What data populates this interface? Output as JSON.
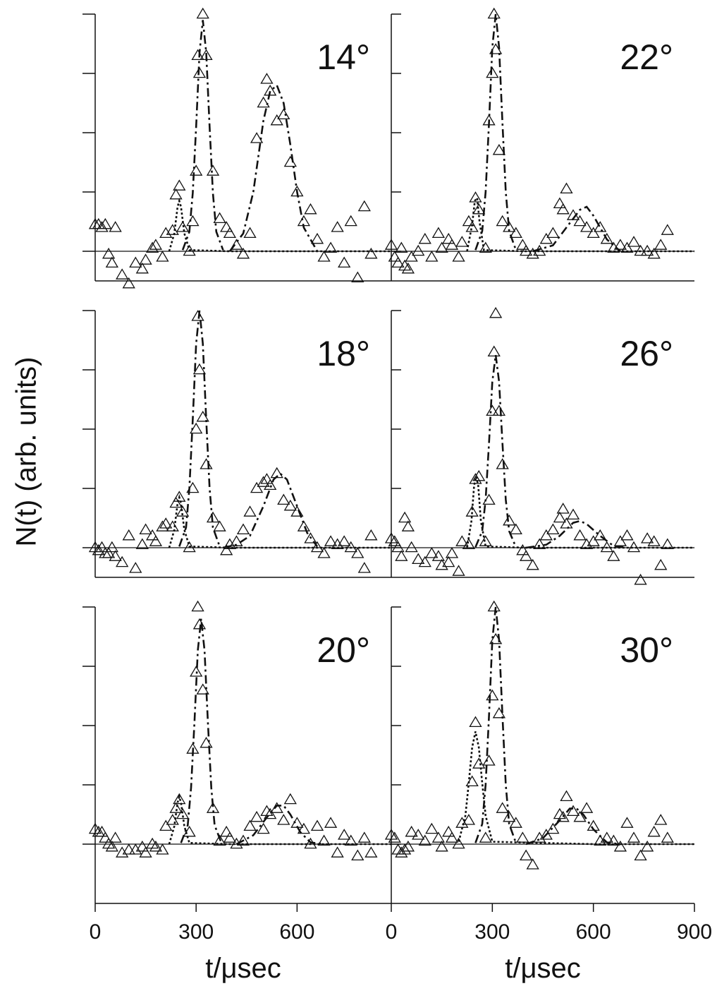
{
  "chart_data": [
    {
      "type": "scatter",
      "annotation": "14°",
      "xlim": [
        0,
        880
      ],
      "ylim": [
        -0.5,
        4
      ],
      "yticks": [
        0,
        1,
        2,
        3,
        4
      ],
      "x": [
        0,
        10,
        20,
        30,
        40,
        50,
        60,
        80,
        100,
        120,
        140,
        150,
        170,
        180,
        200,
        210,
        230,
        240,
        250,
        260,
        280,
        290,
        300,
        305,
        310,
        320,
        330,
        350,
        370,
        390,
        400,
        420,
        440,
        460,
        480,
        500,
        510,
        520,
        540,
        560,
        580,
        600,
        620,
        640,
        660,
        680,
        700,
        720,
        740,
        760,
        780,
        800,
        820
      ],
      "y": [
        0.45,
        0.45,
        0.4,
        0.45,
        -0.05,
        -0.2,
        0.4,
        -0.4,
        -0.55,
        -0.2,
        -0.3,
        -0.15,
        0.05,
        0.1,
        -0.1,
        0.3,
        0.35,
        0.95,
        1.1,
        0.4,
        0,
        0.5,
        1.35,
        3.3,
        3.0,
        4.0,
        3.3,
        1.35,
        0.55,
        0.4,
        0.3,
        0.1,
        -0.05,
        0.3,
        1.9,
        2.5,
        2.9,
        2.7,
        2.2,
        2.3,
        1.5,
        1.0,
        0.5,
        0.7,
        0.2,
        -0.1,
        0.05,
        0.4,
        -0.2,
        0.5,
        -0.45,
        0.75,
        -0.05
      ],
      "curves": [
        {
          "style": "dashdot",
          "x": [
            260,
            280,
            290,
            300,
            310,
            320,
            330,
            340,
            350,
            360,
            380
          ],
          "y": [
            0.02,
            0.33,
            0.98,
            2.1,
            3.35,
            3.9,
            3.35,
            2.1,
            0.98,
            0.33,
            0.02
          ]
        },
        {
          "style": "dashdot",
          "x": [
            400,
            440,
            470,
            500,
            520,
            540,
            560,
            580,
            600,
            620,
            660
          ],
          "y": [
            0,
            0.3,
            1.0,
            2.2,
            2.7,
            2.8,
            2.5,
            1.8,
            1.0,
            0.4,
            0
          ]
        },
        {
          "style": "dotted",
          "x": [
            220,
            235,
            245,
            250,
            255,
            265,
            280,
            400,
            600,
            880
          ],
          "y": [
            0,
            0.3,
            0.75,
            0.85,
            0.75,
            0.3,
            0.02,
            0,
            0,
            0
          ]
        }
      ]
    },
    {
      "type": "scatter",
      "annotation": "22°",
      "xlim": [
        0,
        900
      ],
      "ylim": [
        -0.5,
        4
      ],
      "yticks": [
        0,
        1,
        2,
        3,
        4
      ],
      "x": [
        0,
        10,
        20,
        30,
        40,
        50,
        60,
        80,
        100,
        120,
        140,
        150,
        170,
        180,
        200,
        210,
        230,
        240,
        250,
        260,
        280,
        290,
        300,
        305,
        310,
        320,
        330,
        350,
        370,
        390,
        400,
        420,
        440,
        460,
        480,
        500,
        510,
        520,
        540,
        560,
        580,
        600,
        620,
        640,
        660,
        680,
        700,
        720,
        740,
        760,
        780,
        800,
        820
      ],
      "y": [
        0.1,
        -0.1,
        -0.2,
        0.05,
        -0.25,
        -0.3,
        -0.1,
        0,
        0.2,
        -0.1,
        0.3,
        0.05,
        0.2,
        0.1,
        -0.1,
        0.15,
        0.5,
        0.4,
        0.9,
        0.7,
        0.05,
        2.2,
        3.0,
        4.0,
        3.4,
        1.7,
        0.5,
        0.4,
        0.3,
        0.1,
        0,
        -0.05,
        0,
        0.2,
        0.3,
        0.8,
        0.7,
        1.05,
        0.6,
        0.5,
        0.4,
        0.3,
        0.4,
        0.2,
        0.05,
        0.1,
        0.05,
        0.15,
        0,
        0,
        -0.05,
        0.1,
        0.35
      ],
      "curves": [
        {
          "style": "dashdot",
          "x": [
            250,
            270,
            280,
            290,
            300,
            310,
            320,
            330,
            340,
            350,
            370
          ],
          "y": [
            0.02,
            0.34,
            1.0,
            2.16,
            3.44,
            4.0,
            3.44,
            2.16,
            1.0,
            0.34,
            0.02
          ]
        },
        {
          "style": "dashdot",
          "x": [
            420,
            480,
            520,
            560,
            580,
            600,
            640,
            680
          ],
          "y": [
            0,
            0.1,
            0.4,
            0.7,
            0.75,
            0.6,
            0.2,
            0
          ]
        },
        {
          "style": "dotted",
          "x": [
            225,
            240,
            248,
            255,
            262,
            275,
            400,
            600,
            900
          ],
          "y": [
            0,
            0.45,
            0.85,
            0.9,
            0.5,
            0.02,
            0,
            0,
            0
          ]
        }
      ]
    },
    {
      "type": "scatter",
      "annotation": "18°",
      "ylabel": "N(t) (arb. units)",
      "xlim": [
        0,
        880
      ],
      "ylim": [
        -0.5,
        4
      ],
      "yticks": [
        0,
        1,
        2,
        3,
        4
      ],
      "x": [
        0,
        10,
        20,
        30,
        40,
        50,
        60,
        80,
        100,
        120,
        140,
        150,
        170,
        180,
        200,
        210,
        230,
        240,
        250,
        260,
        280,
        290,
        300,
        305,
        310,
        320,
        330,
        350,
        370,
        390,
        400,
        420,
        440,
        460,
        480,
        500,
        510,
        520,
        540,
        560,
        580,
        600,
        620,
        640,
        660,
        680,
        700,
        720,
        740,
        760,
        780,
        800,
        820
      ],
      "y": [
        0,
        -0.05,
        0,
        -0.1,
        -0.1,
        0,
        -0.15,
        -0.25,
        0.2,
        -0.35,
        0.05,
        0.3,
        0.2,
        0.1,
        0.35,
        0.4,
        0.35,
        0.75,
        0.85,
        0.6,
        0,
        1.0,
        2.0,
        3.9,
        3.0,
        2.2,
        1.4,
        0.5,
        0.35,
        -0.05,
        0.05,
        0.1,
        0.3,
        0.6,
        1.0,
        1.1,
        1.15,
        1.05,
        1.25,
        0.8,
        0.7,
        0.6,
        0.35,
        0.15,
        0,
        -0.1,
        0.1,
        0.05,
        0.1,
        0,
        -0.1,
        -0.35,
        0.2
      ],
      "curves": [
        {
          "style": "dashdot",
          "x": [
            250,
            270,
            280,
            290,
            300,
            310,
            320,
            330,
            340,
            350,
            370
          ],
          "y": [
            0.02,
            0.34,
            1.0,
            2.16,
            3.44,
            4.0,
            3.44,
            2.16,
            1.0,
            0.34,
            0.02
          ]
        },
        {
          "style": "dashdot",
          "x": [
            380,
            420,
            460,
            500,
            530,
            550,
            570,
            600,
            630,
            660
          ],
          "y": [
            0,
            0.05,
            0.2,
            0.7,
            1.15,
            1.25,
            1.15,
            0.7,
            0.25,
            0.02
          ]
        },
        {
          "style": "dotted",
          "x": [
            220,
            235,
            245,
            250,
            255,
            265,
            280,
            400,
            600,
            880
          ],
          "y": [
            0,
            0.3,
            0.75,
            0.85,
            0.75,
            0.3,
            0.02,
            0,
            0,
            0
          ]
        }
      ]
    },
    {
      "type": "scatter",
      "annotation": "26°",
      "xlim": [
        0,
        900
      ],
      "ylim": [
        -0.5,
        4
      ],
      "yticks": [
        0,
        1,
        2,
        3,
        4
      ],
      "x": [
        0,
        10,
        20,
        30,
        40,
        50,
        60,
        80,
        100,
        120,
        140,
        150,
        170,
        180,
        200,
        210,
        230,
        240,
        250,
        260,
        280,
        290,
        300,
        305,
        310,
        320,
        330,
        350,
        370,
        390,
        400,
        420,
        440,
        460,
        480,
        500,
        510,
        520,
        540,
        560,
        580,
        600,
        620,
        640,
        660,
        680,
        700,
        720,
        740,
        760,
        780,
        800,
        820
      ],
      "y": [
        0.15,
        0.1,
        0,
        -0.15,
        0.5,
        0.35,
        0,
        -0.2,
        -0.25,
        -0.1,
        -0.15,
        -0.3,
        -0.25,
        -0.1,
        -0.4,
        0.1,
        0.05,
        0.6,
        1.15,
        1.2,
        0.1,
        0.8,
        2.3,
        3.3,
        3.95,
        2.3,
        1.4,
        0.45,
        0.3,
        -0.05,
        -0.15,
        -0.3,
        0.05,
        0.2,
        0.3,
        0.5,
        0.65,
        0.4,
        0.55,
        0.2,
        0.05,
        0.1,
        0.2,
        0,
        -0.15,
        0.1,
        0.2,
        0,
        -0.55,
        0.15,
        0.1,
        -0.3,
        0.05
      ],
      "curves": [
        {
          "style": "dashdot",
          "x": [
            250,
            270,
            280,
            290,
            300,
            310,
            320,
            330,
            340,
            350,
            370
          ],
          "y": [
            0.01,
            0.28,
            0.81,
            1.76,
            2.8,
            3.25,
            2.8,
            1.76,
            0.81,
            0.28,
            0.01
          ]
        },
        {
          "style": "dashdot",
          "x": [
            400,
            460,
            500,
            540,
            560,
            580,
            620,
            660,
            700
          ],
          "y": [
            0,
            0.05,
            0.2,
            0.42,
            0.45,
            0.4,
            0.2,
            0.03,
            0
          ]
        },
        {
          "style": "dotted",
          "x": [
            225,
            238,
            246,
            252,
            258,
            266,
            280,
            400,
            600,
            900
          ],
          "y": [
            0,
            0.45,
            1.05,
            1.2,
            1.05,
            0.45,
            0.02,
            0,
            0,
            0
          ]
        }
      ]
    },
    {
      "type": "scatter",
      "annotation": "20°",
      "xlabel": "t/μsec",
      "xlim": [
        0,
        880
      ],
      "ylim": [
        -1,
        4
      ],
      "yticks": [
        0,
        1,
        2,
        3,
        4
      ],
      "xticks": [
        0,
        300,
        600
      ],
      "x": [
        0,
        10,
        20,
        30,
        40,
        50,
        60,
        80,
        100,
        120,
        140,
        150,
        170,
        180,
        200,
        210,
        230,
        240,
        250,
        260,
        280,
        290,
        300,
        305,
        310,
        320,
        330,
        350,
        370,
        390,
        400,
        420,
        440,
        460,
        480,
        500,
        510,
        520,
        540,
        560,
        580,
        600,
        620,
        640,
        660,
        680,
        700,
        720,
        740,
        760,
        780,
        800,
        820
      ],
      "y": [
        0.25,
        0.2,
        0.2,
        0.1,
        0,
        -0.05,
        0.1,
        -0.15,
        -0.1,
        -0.1,
        -0.05,
        -0.15,
        0,
        -0.05,
        -0.1,
        0.3,
        0.4,
        0.6,
        0.75,
        0.5,
        0.2,
        1.6,
        2.9,
        4.0,
        3.7,
        2.6,
        1.7,
        0.6,
        0.05,
        0.2,
        0.1,
        0,
        0.05,
        0.3,
        0.45,
        0.25,
        0.55,
        0.5,
        0.6,
        0.4,
        0.75,
        0.35,
        0.25,
        0,
        0.3,
        0.05,
        0.35,
        -0.15,
        0.15,
        0.05,
        -0.2,
        0.1,
        -0.15
      ],
      "curves": [
        {
          "style": "dashdot",
          "x": [
            255,
            275,
            285,
            295,
            305,
            315,
            325,
            335,
            345,
            355,
            375
          ],
          "y": [
            0.02,
            0.32,
            0.95,
            2.05,
            3.27,
            3.8,
            3.27,
            2.05,
            0.95,
            0.32,
            0.02
          ]
        },
        {
          "style": "dashdot",
          "x": [
            420,
            470,
            510,
            540,
            560,
            580,
            610,
            640,
            680
          ],
          "y": [
            0,
            0.15,
            0.45,
            0.65,
            0.65,
            0.5,
            0.2,
            0.03,
            0
          ]
        },
        {
          "style": "dotted",
          "x": [
            220,
            235,
            245,
            250,
            255,
            265,
            280,
            400,
            600,
            880
          ],
          "y": [
            0,
            0.3,
            0.7,
            0.8,
            0.7,
            0.3,
            0.02,
            0,
            0,
            0
          ]
        }
      ]
    },
    {
      "type": "scatter",
      "annotation": "30°",
      "xlabel": "t/μsec",
      "xlim": [
        0,
        900
      ],
      "ylim": [
        -1,
        4
      ],
      "yticks": [
        0,
        1,
        2,
        3,
        4
      ],
      "xticks": [
        0,
        300,
        600,
        900
      ],
      "x": [
        0,
        10,
        20,
        30,
        40,
        50,
        60,
        80,
        100,
        120,
        140,
        150,
        170,
        180,
        200,
        210,
        230,
        240,
        250,
        260,
        280,
        290,
        300,
        305,
        310,
        320,
        330,
        350,
        370,
        390,
        400,
        420,
        440,
        460,
        480,
        500,
        510,
        520,
        540,
        560,
        580,
        600,
        620,
        640,
        660,
        680,
        700,
        720,
        740,
        760,
        780,
        800,
        820
      ],
      "y": [
        0.15,
        0.1,
        -0.1,
        -0.15,
        -0.1,
        -0.05,
        0.2,
        0.15,
        0.05,
        0.25,
        0.1,
        -0.05,
        0.2,
        0.1,
        0,
        0.35,
        0.4,
        1.05,
        2.05,
        1.35,
        0.1,
        1.4,
        2.5,
        4.0,
        3.45,
        2.2,
        0.6,
        0.45,
        0.35,
        0.1,
        -0.2,
        -0.35,
        0.1,
        0.15,
        0.25,
        0.5,
        0.45,
        0.8,
        0.55,
        0.45,
        0.6,
        0.3,
        0.05,
        0.1,
        0.05,
        -0.05,
        0.35,
        0.1,
        -0.2,
        -0.05,
        0.2,
        0.4,
        0.1
      ],
      "curves": [
        {
          "style": "dashdot",
          "x": [
            250,
            270,
            280,
            290,
            300,
            310,
            320,
            330,
            340,
            350,
            370
          ],
          "y": [
            0.02,
            0.34,
            1.0,
            2.16,
            3.44,
            4.0,
            3.44,
            2.16,
            1.0,
            0.34,
            0.02
          ]
        },
        {
          "style": "dashdot",
          "x": [
            400,
            450,
            500,
            530,
            550,
            570,
            600,
            640,
            680
          ],
          "y": [
            0,
            0.1,
            0.4,
            0.6,
            0.6,
            0.5,
            0.25,
            0.03,
            0
          ]
        },
        {
          "style": "dotted",
          "x": [
            200,
            220,
            230,
            240,
            250,
            260,
            270,
            280,
            300,
            600,
            900
          ],
          "y": [
            0.04,
            0.48,
            1.03,
            1.63,
            1.9,
            1.63,
            1.03,
            0.48,
            0.04,
            0,
            0
          ]
        }
      ]
    }
  ]
}
